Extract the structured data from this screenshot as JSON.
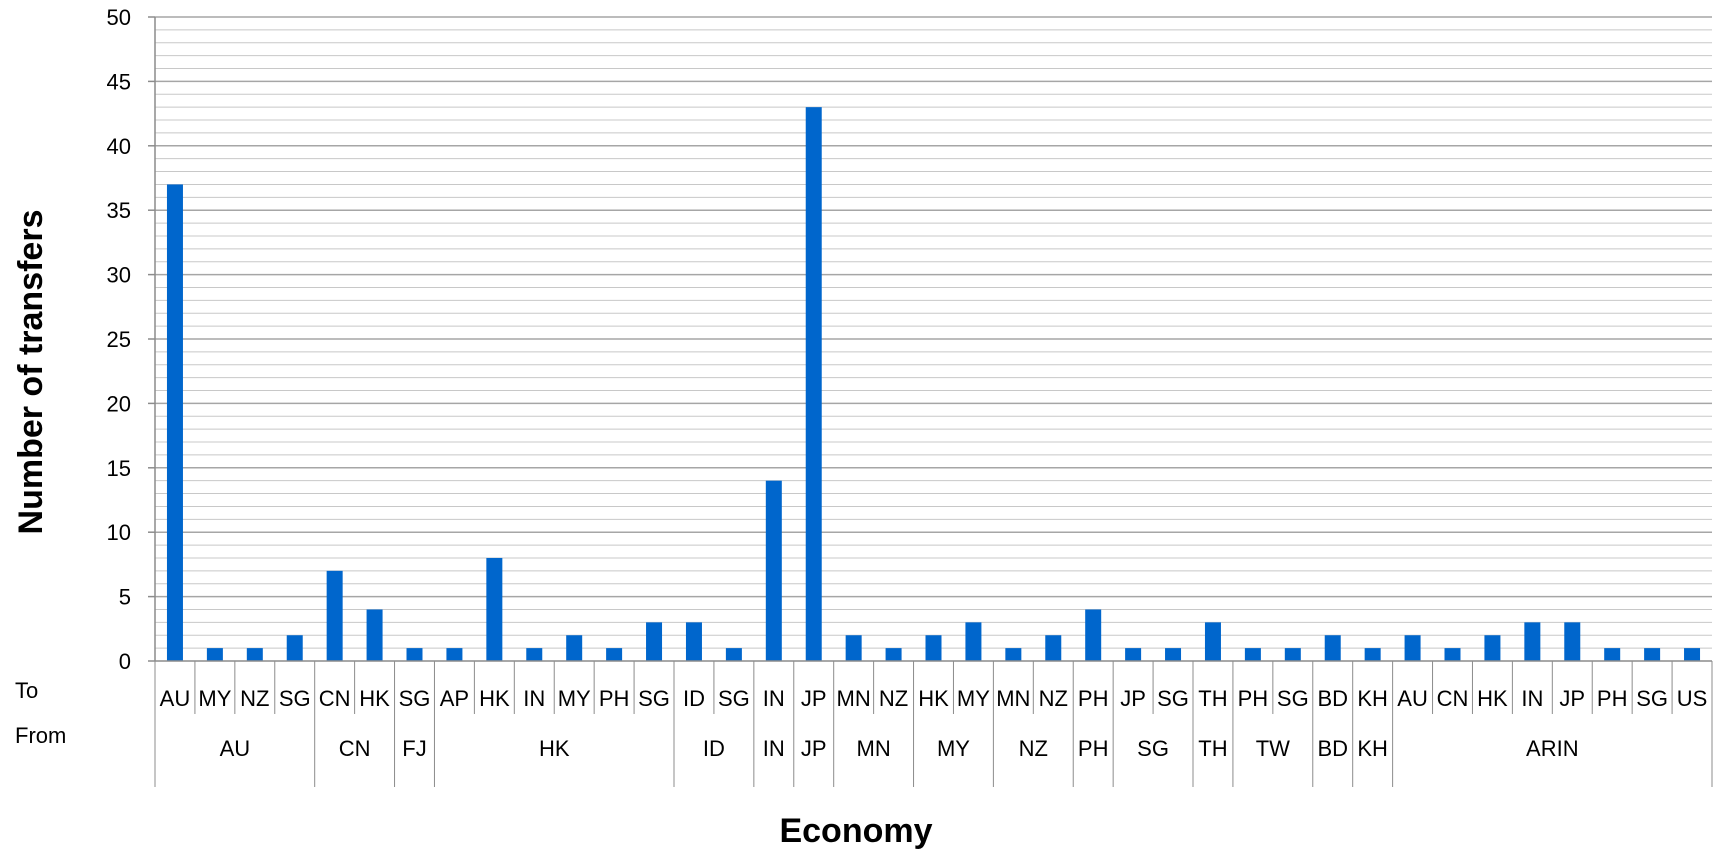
{
  "chart_data": {
    "type": "bar",
    "title": "",
    "xlabel": "Economy",
    "ylabel": "Number of transfers",
    "ylim": [
      0,
      50
    ],
    "y_major_step": 5,
    "y_minor_step": 1,
    "grid": true,
    "legend": "none",
    "row_labels": {
      "to": "To",
      "from": "From"
    },
    "categories": [
      "AU",
      "MY",
      "NZ",
      "SG",
      "CN",
      "HK",
      "SG",
      "AP",
      "HK",
      "IN",
      "MY",
      "PH",
      "SG",
      "ID",
      "SG",
      "IN",
      "JP",
      "MN",
      "NZ",
      "HK",
      "MY",
      "MN",
      "NZ",
      "PH",
      "JP",
      "SG",
      "TH",
      "PH",
      "SG",
      "BD",
      "KH",
      "AU",
      "CN",
      "HK",
      "IN",
      "JP",
      "PH",
      "SG",
      "US"
    ],
    "groups": [
      {
        "label": "AU",
        "count": 4
      },
      {
        "label": "CN",
        "count": 2
      },
      {
        "label": "FJ",
        "count": 1
      },
      {
        "label": "HK",
        "count": 6
      },
      {
        "label": "ID",
        "count": 2
      },
      {
        "label": "IN",
        "count": 1
      },
      {
        "label": "JP",
        "count": 1
      },
      {
        "label": "MN",
        "count": 2
      },
      {
        "label": "MY",
        "count": 2
      },
      {
        "label": "NZ",
        "count": 2
      },
      {
        "label": "PH",
        "count": 1
      },
      {
        "label": "SG",
        "count": 2
      },
      {
        "label": "TH",
        "count": 1
      },
      {
        "label": "TW",
        "count": 2
      },
      {
        "label": "BD",
        "count": 1
      },
      {
        "label": "KH",
        "count": 1
      },
      {
        "label": "ARIN",
        "count": 8
      }
    ],
    "values": [
      37,
      1,
      1,
      2,
      7,
      4,
      1,
      1,
      8,
      1,
      2,
      1,
      3,
      3,
      1,
      14,
      43,
      2,
      1,
      2,
      3,
      1,
      2,
      4,
      1,
      1,
      3,
      1,
      1,
      2,
      1,
      2,
      1,
      2,
      3,
      3,
      1,
      1,
      1
    ],
    "colors": {
      "bar": "#0066CC",
      "major_grid": "#A6A6A6",
      "minor_grid": "#C8C8C8",
      "axis": "#8C8C8C"
    }
  }
}
